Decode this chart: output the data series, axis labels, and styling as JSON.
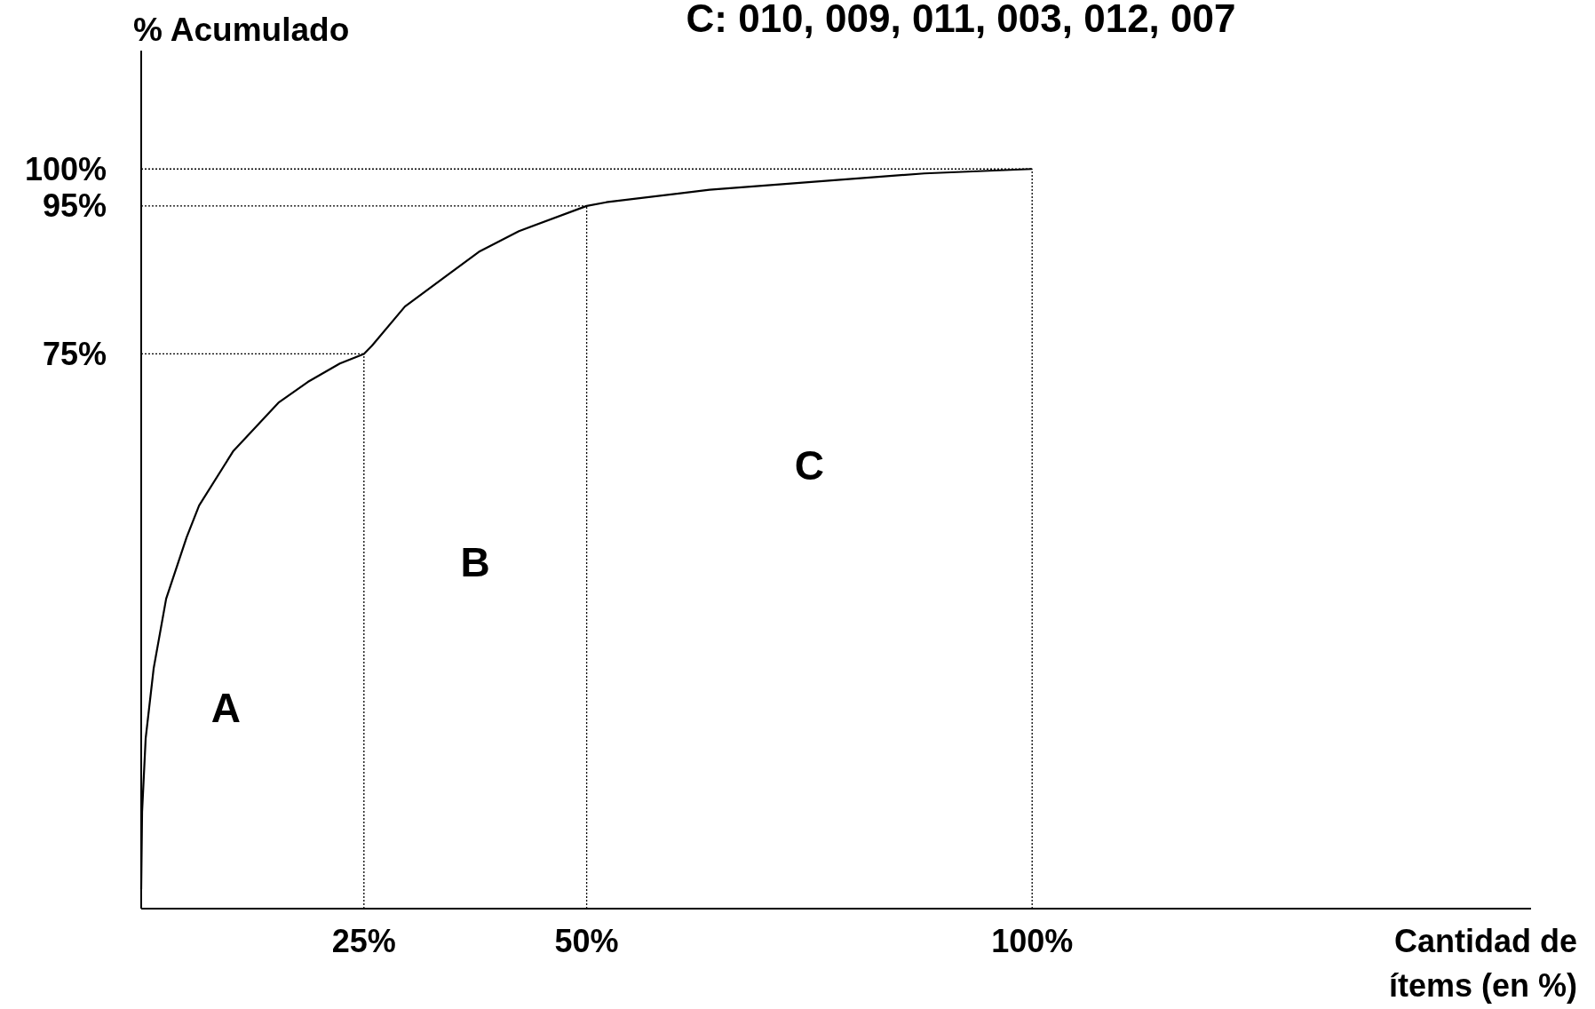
{
  "chart_data": {
    "type": "line",
    "title": "C: 010, 009, 011, 003, 012, 007",
    "xlabel": "Cantidad de ítems (en %)",
    "ylabel": "% Acumulado",
    "x": [
      0,
      0.1,
      0.5,
      1.4,
      2.8,
      5.1,
      6.5,
      10.3,
      15.4,
      18.7,
      22.3,
      25,
      25.9,
      29.6,
      37.9,
      42.4,
      50,
      52.2,
      63.8,
      87.9,
      100
    ],
    "series": [
      {
        "color": "#000000",
        "values": [
          2.6,
          13.1,
          23.0,
          32.5,
          41.9,
          50.2,
          54.5,
          61.8,
          68.4,
          71.2,
          73.7,
          75,
          76.1,
          81.4,
          88.8,
          91.6,
          95,
          95.5,
          97.2,
          99.4,
          100
        ]
      }
    ],
    "xlim": [
      0,
      156
    ],
    "ylim": [
      0,
      116
    ],
    "xticks": [
      {
        "value": 25,
        "label": "25%"
      },
      {
        "value": 50,
        "label": "50%"
      },
      {
        "value": 100,
        "label": "100%"
      }
    ],
    "yticks": [
      {
        "value": 75,
        "label": "75%"
      },
      {
        "value": 95,
        "label": "95%"
      },
      {
        "value": 100,
        "label": "100%"
      }
    ],
    "ref_lines": [
      {
        "axis": "y",
        "value": 100,
        "line_style": "dotted",
        "color": "#000000"
      },
      {
        "axis": "y",
        "value": 95,
        "line_style": "dotted",
        "color": "#000000"
      },
      {
        "axis": "y",
        "value": 75,
        "line_style": "dotted",
        "color": "#000000"
      },
      {
        "axis": "x",
        "value": 25,
        "line_style": "dotted",
        "color": "#000000"
      },
      {
        "axis": "x",
        "value": 50,
        "line_style": "dotted",
        "color": "#000000"
      },
      {
        "axis": "x",
        "value": 100,
        "line_style": "dotted",
        "color": "#000000"
      }
    ],
    "annotations": [
      "A",
      "B",
      "C"
    ],
    "grid": false,
    "marker": "none",
    "line_style": "solid"
  }
}
